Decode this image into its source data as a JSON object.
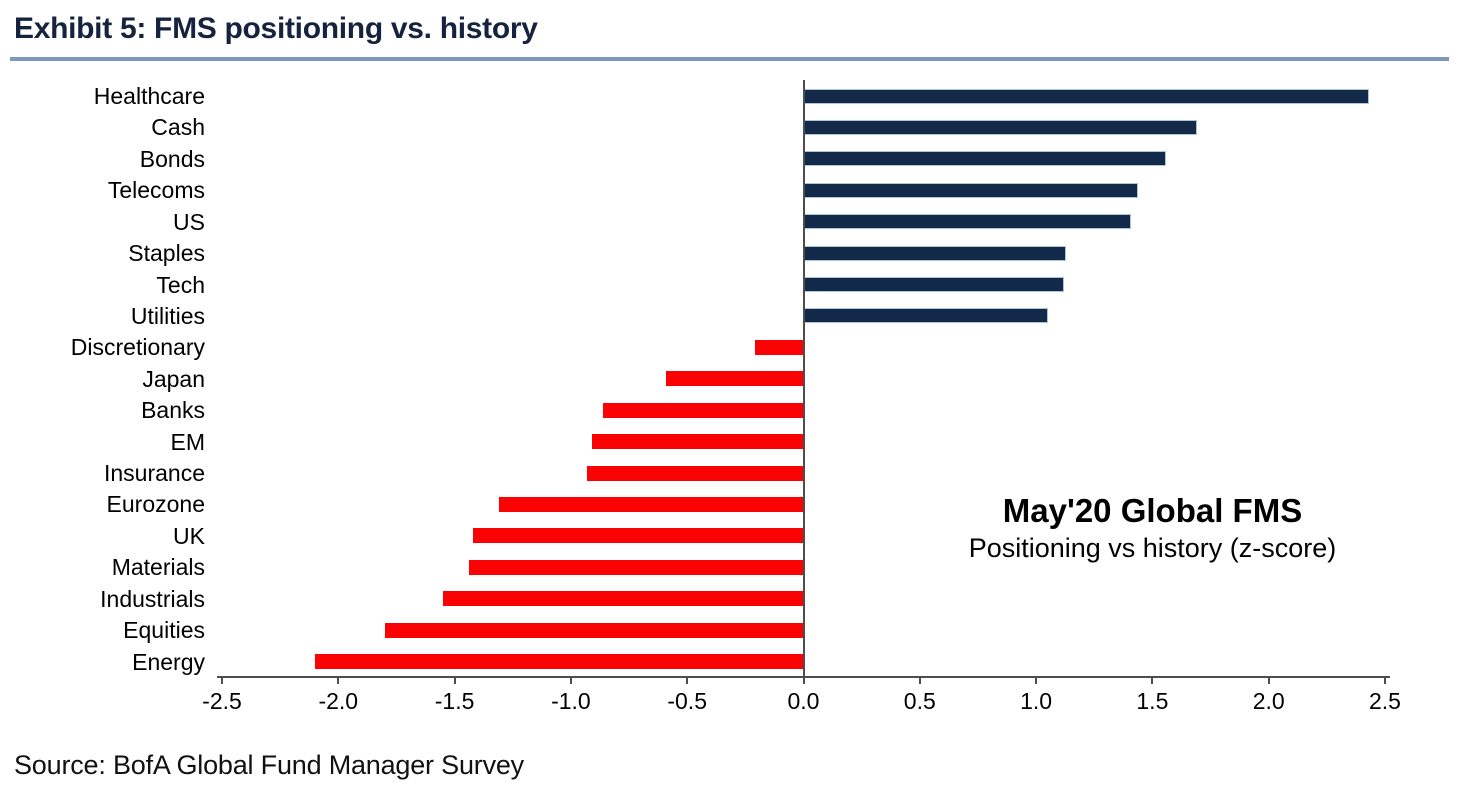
{
  "header": {
    "title": "Exhibit 5: FMS positioning vs. history"
  },
  "annotation": {
    "line1": "May'20 Global FMS",
    "line2": "Positioning vs history (z-score)"
  },
  "source": {
    "text": "Source: BofA Global Fund Manager Survey"
  },
  "colors": {
    "title_text": "#15233E",
    "title_rule": "#7E98B7",
    "axis": "#4D4D4D",
    "positive_bar": "#12294A",
    "positive_bar_border": "#AEC2D8",
    "negative_bar": "#FB0304"
  },
  "chart_data": {
    "type": "bar",
    "orientation": "horizontal",
    "title": "May'20 Global FMS",
    "subtitle": "Positioning vs history (z-score)",
    "categories": [
      "Healthcare",
      "Cash",
      "Bonds",
      "Telecoms",
      "US",
      "Staples",
      "Tech",
      "Utilities",
      "Discretionary",
      "Japan",
      "Banks",
      "EM",
      "Insurance",
      "Eurozone",
      "UK",
      "Materials",
      "Industrials",
      "Equities",
      "Energy"
    ],
    "values": [
      2.43,
      1.69,
      1.56,
      1.44,
      1.41,
      1.13,
      1.12,
      1.05,
      -0.21,
      -0.59,
      -0.86,
      -0.91,
      -0.93,
      -1.31,
      -1.42,
      -1.44,
      -1.55,
      -1.8,
      -2.1
    ],
    "xlabel": "",
    "ylabel": "",
    "xlim": [
      -2.5,
      2.5
    ],
    "xtick_labels": [
      "-2.5",
      "-2.0",
      "-1.5",
      "-1.0",
      "-0.5",
      "0.0",
      "0.5",
      "1.0",
      "1.5",
      "2.0",
      "2.5"
    ],
    "grid": false,
    "legend": false,
    "positive_color": "#12294A",
    "negative_color": "#FB0304"
  }
}
